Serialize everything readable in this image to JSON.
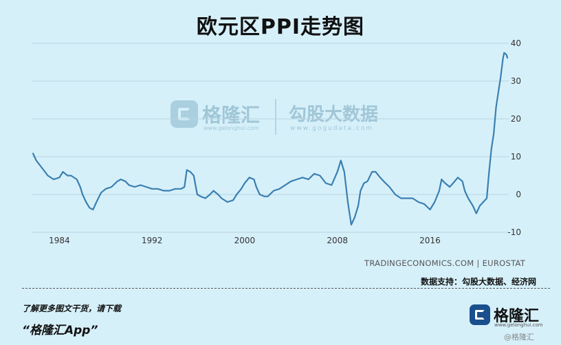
{
  "title": "欧元区PPI走势图",
  "watermark": {
    "name1": "格隆汇",
    "site1": "www.gelonghui.com",
    "name2": "勾股大数据",
    "site2": "www.gogudata.com"
  },
  "source_note": "TRADINGECONOMICS.COM | EUROSTAT",
  "support_note": "数据支持：勾股大数据、经济网",
  "promo": {
    "line1": "了解更多图文干货，请下载",
    "line2": "“格隆汇App”"
  },
  "brand": {
    "name": "格隆汇",
    "site": "www.gelonghui.com",
    "watermark": "@格隆汇"
  },
  "colors": {
    "background": "#d6f0fa",
    "line": "#3a7fb0",
    "grid": "#b8d3e0"
  },
  "chart_data": {
    "type": "line",
    "title": "欧元区PPI走势图",
    "xlabel": "",
    "ylabel": "",
    "xlim": [
      1981.6,
      2022.8
    ],
    "ylim": [
      -10,
      40
    ],
    "x_ticks": [
      1984,
      1992,
      2000,
      2008,
      2016
    ],
    "y_ticks": [
      40,
      30,
      20,
      10,
      0,
      -10
    ],
    "y_axis_position": "right",
    "grid": "horizontal",
    "series": [
      {
        "name": "",
        "x": [
          1981.7,
          1982.0,
          1982.5,
          1983.0,
          1983.5,
          1984.0,
          1984.3,
          1984.7,
          1985.0,
          1985.5,
          1985.8,
          1986.0,
          1986.3,
          1986.6,
          1986.9,
          1987.2,
          1987.6,
          1988.0,
          1988.5,
          1989.0,
          1989.3,
          1989.7,
          1990.0,
          1990.5,
          1991.0,
          1991.5,
          1992.0,
          1992.5,
          1993.0,
          1993.5,
          1994.0,
          1994.5,
          1994.8,
          1995.0,
          1995.3,
          1995.6,
          1995.9,
          1996.2,
          1996.6,
          1997.0,
          1997.3,
          1997.7,
          1998.0,
          1998.5,
          1999.0,
          1999.3,
          1999.7,
          2000.0,
          2000.4,
          2000.8,
          2001.0,
          2001.3,
          2001.7,
          2002.0,
          2002.5,
          2003.0,
          2003.5,
          2004.0,
          2004.5,
          2005.0,
          2005.5,
          2006.0,
          2006.5,
          2007.0,
          2007.5,
          2008.0,
          2008.3,
          2008.6,
          2008.9,
          2009.2,
          2009.5,
          2009.8,
          2010.0,
          2010.3,
          2010.6,
          2011.0,
          2011.3,
          2011.7,
          2012.0,
          2012.5,
          2013.0,
          2013.5,
          2014.0,
          2014.5,
          2015.0,
          2015.5,
          2016.0,
          2016.4,
          2016.8,
          2017.0,
          2017.3,
          2017.7,
          2018.0,
          2018.4,
          2018.8,
          2019.0,
          2019.3,
          2019.7,
          2020.0,
          2020.3,
          2020.6,
          2020.9,
          2021.1,
          2021.3,
          2021.5,
          2021.7,
          2021.9,
          2022.1,
          2022.3,
          2022.4,
          2022.6,
          2022.7
        ],
        "y": [
          11,
          9,
          7,
          5,
          4,
          4.5,
          6,
          5,
          5,
          4,
          2,
          0,
          -2,
          -3.5,
          -4,
          -2,
          0.5,
          1.5,
          2,
          3.5,
          4,
          3.5,
          2.5,
          2,
          2.5,
          2,
          1.5,
          1.5,
          1,
          1,
          1.5,
          1.5,
          2,
          6.5,
          6,
          5,
          0,
          -0.5,
          -1,
          0,
          1,
          0,
          -1,
          -2,
          -1.5,
          0,
          1.5,
          3,
          4.5,
          4,
          2,
          0,
          -0.5,
          -0.5,
          1,
          1.5,
          2.5,
          3.5,
          4,
          4.5,
          4,
          5.5,
          5,
          3,
          2.5,
          6,
          9,
          6,
          -2,
          -8,
          -6,
          -3,
          1,
          3,
          3.5,
          6,
          6,
          4.5,
          3.5,
          2,
          0,
          -1,
          -1,
          -1,
          -2,
          -2.5,
          -4,
          -2,
          1,
          4,
          3,
          2,
          3,
          4.5,
          3.5,
          1,
          -1,
          -3,
          -5,
          -3,
          -2,
          -1,
          6,
          12,
          16,
          23,
          27,
          31,
          36,
          37.5,
          37,
          36
        ]
      }
    ]
  }
}
